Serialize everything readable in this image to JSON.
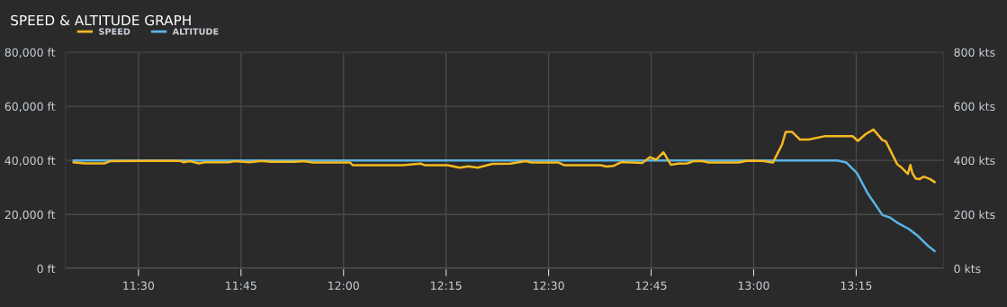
{
  "chart_data": {
    "type": "line",
    "title": "SPEED & ALTITUDE GRAPH",
    "legend": "top left",
    "grid": true,
    "marker": "none",
    "line_style": "solid",
    "xlim": [
      11.322,
      13.463
    ],
    "xticks": [
      {
        "value": 11.5,
        "label": "11:30"
      },
      {
        "value": 11.75,
        "label": "11:45"
      },
      {
        "value": 12.0,
        "label": "12:00"
      },
      {
        "value": 12.25,
        "label": "12:15"
      },
      {
        "value": 12.5,
        "label": "12:30"
      },
      {
        "value": 12.75,
        "label": "12:45"
      },
      {
        "value": 13.0,
        "label": "13:00"
      },
      {
        "value": 13.25,
        "label": "13:15"
      }
    ],
    "ylim": [
      0,
      80000
    ],
    "yticks": [
      {
        "value": 0,
        "label": "0 ft"
      },
      {
        "value": 20000,
        "label": "20,000 ft"
      },
      {
        "value": 40000,
        "label": "40,000 ft"
      },
      {
        "value": 60000,
        "label": "60,000 ft"
      },
      {
        "value": 80000,
        "label": "80,000 ft"
      }
    ],
    "y2lim": [
      0,
      800
    ],
    "y2ticks": [
      {
        "value": 0,
        "label": "0 kts"
      },
      {
        "value": 200,
        "label": "200 kts"
      },
      {
        "value": 400,
        "label": "400 kts"
      },
      {
        "value": 600,
        "label": "600 kts"
      },
      {
        "value": 800,
        "label": "800 kts"
      }
    ],
    "series": [
      {
        "name": "SPEED",
        "color": "#f5b921",
        "axis": "y2",
        "x": [
          11.342,
          11.369,
          11.417,
          11.431,
          11.501,
          11.544,
          11.603,
          11.61,
          11.625,
          11.647,
          11.662,
          11.72,
          11.735,
          11.771,
          11.8,
          11.822,
          11.881,
          11.903,
          11.925,
          12.016,
          12.023,
          12.129,
          12.144,
          12.188,
          12.199,
          12.254,
          12.283,
          12.305,
          12.327,
          12.363,
          12.407,
          12.444,
          12.458,
          12.524,
          12.539,
          12.627,
          12.641,
          12.659,
          12.678,
          12.729,
          12.747,
          12.762,
          12.78,
          12.798,
          12.816,
          12.838,
          12.853,
          12.875,
          12.89,
          12.963,
          12.985,
          13.021,
          13.047,
          13.058,
          13.069,
          13.078,
          13.094,
          13.113,
          13.134,
          13.175,
          13.241,
          13.254,
          13.273,
          13.292,
          13.314,
          13.322,
          13.35,
          13.361,
          13.376,
          13.382,
          13.387,
          13.395,
          13.405,
          13.414,
          13.43,
          13.441
        ],
        "values": [
          393,
          389,
          389,
          397,
          398,
          398,
          398,
          393,
          397,
          389,
          393,
          393,
          397,
          393,
          398,
          395,
          395,
          397,
          392,
          392,
          382,
          382,
          382,
          388,
          382,
          382,
          373,
          378,
          373,
          387,
          388,
          397,
          392,
          392,
          382,
          382,
          377,
          380,
          394,
          391,
          412,
          403,
          430,
          384,
          388,
          389,
          397,
          397,
          392,
          392,
          399,
          398,
          392,
          425,
          458,
          505,
          505,
          477,
          477,
          490,
          490,
          472,
          497,
          514,
          475,
          471,
          386,
          373,
          350,
          383,
          353,
          333,
          331,
          340,
          331,
          320
        ]
      },
      {
        "name": "ALTITUDE",
        "color": "#5ab4e5",
        "x": [
          11.342,
          13.204,
          13.226,
          13.252,
          13.277,
          13.314,
          13.332,
          13.35,
          13.379,
          13.401,
          13.423,
          13.441
        ],
        "values": [
          40000,
          40000,
          39200,
          35300,
          28100,
          19800,
          18900,
          17000,
          14600,
          12000,
          8700,
          6500
        ]
      }
    ]
  }
}
